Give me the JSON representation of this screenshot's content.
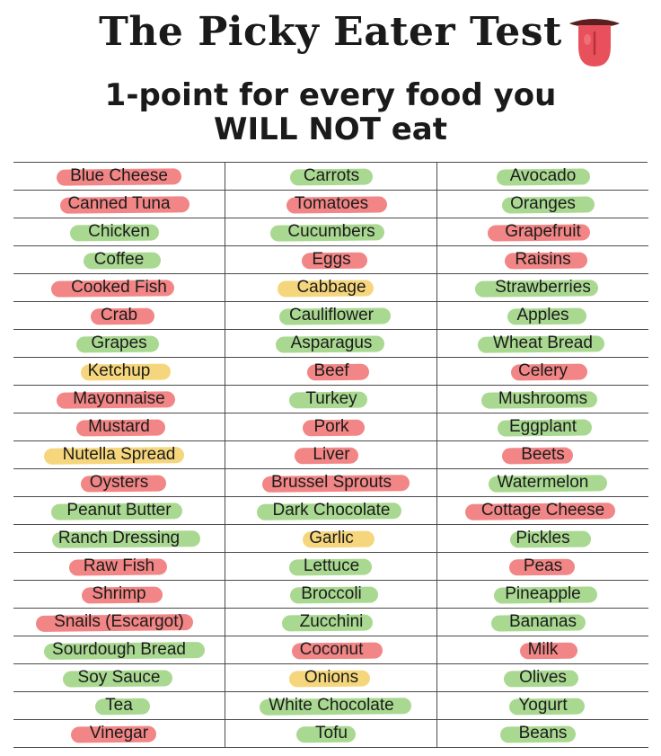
{
  "header": {
    "title": "The Picky Eater Test",
    "subtitle_line1": "1-point for every food you",
    "subtitle_line2": "WILL NOT eat"
  },
  "highlight_colors": {
    "red": "#f28585",
    "green": "#a9d891",
    "yellow": "#f6d67c"
  },
  "columns": [
    [
      {
        "label": "Blue Cheese",
        "color": "red"
      },
      {
        "label": "Canned Tuna",
        "color": "red"
      },
      {
        "label": "Chicken",
        "color": "green"
      },
      {
        "label": "Coffee",
        "color": "green"
      },
      {
        "label": "Cooked Fish",
        "color": "red"
      },
      {
        "label": "Crab",
        "color": "red"
      },
      {
        "label": "Grapes",
        "color": "green"
      },
      {
        "label": "Ketchup",
        "color": "yellow"
      },
      {
        "label": "Mayonnaise",
        "color": "red"
      },
      {
        "label": "Mustard",
        "color": "red"
      },
      {
        "label": "Nutella Spread",
        "color": "yellow"
      },
      {
        "label": "Oysters",
        "color": "red"
      },
      {
        "label": "Peanut Butter",
        "color": "green"
      },
      {
        "label": "Ranch Dressing",
        "color": "green"
      },
      {
        "label": "Raw Fish",
        "color": "red"
      },
      {
        "label": "Shrimp",
        "color": "red"
      },
      {
        "label": "Snails (Escargot)",
        "color": "red"
      },
      {
        "label": "Sourdough Bread",
        "color": "green"
      },
      {
        "label": "Soy Sauce",
        "color": "green"
      },
      {
        "label": "Tea",
        "color": "green"
      },
      {
        "label": "Vinegar",
        "color": "red"
      }
    ],
    [
      {
        "label": "Carrots",
        "color": "green"
      },
      {
        "label": "Tomatoes",
        "color": "red"
      },
      {
        "label": "Cucumbers",
        "color": "green"
      },
      {
        "label": "Eggs",
        "color": "red"
      },
      {
        "label": "Cabbage",
        "color": "yellow"
      },
      {
        "label": "Cauliflower",
        "color": "green"
      },
      {
        "label": "Asparagus",
        "color": "green"
      },
      {
        "label": "Beef",
        "color": "red"
      },
      {
        "label": "Turkey",
        "color": "green"
      },
      {
        "label": "Pork",
        "color": "red"
      },
      {
        "label": "Liver",
        "color": "red"
      },
      {
        "label": "Brussel Sprouts",
        "color": "red"
      },
      {
        "label": "Dark Chocolate",
        "color": "green"
      },
      {
        "label": "Garlic",
        "color": "yellow"
      },
      {
        "label": "Lettuce",
        "color": "green"
      },
      {
        "label": "Broccoli",
        "color": "green"
      },
      {
        "label": "Zucchini",
        "color": "green"
      },
      {
        "label": "Coconut",
        "color": "red"
      },
      {
        "label": "Onions",
        "color": "yellow"
      },
      {
        "label": "White Chocolate",
        "color": "green"
      },
      {
        "label": "Tofu",
        "color": "green"
      }
    ],
    [
      {
        "label": "Avocado",
        "color": "green"
      },
      {
        "label": "Oranges",
        "color": "green"
      },
      {
        "label": "Grapefruit",
        "color": "red"
      },
      {
        "label": "Raisins",
        "color": "red"
      },
      {
        "label": "Strawberries",
        "color": "green"
      },
      {
        "label": "Apples",
        "color": "green"
      },
      {
        "label": "Wheat Bread",
        "color": "green"
      },
      {
        "label": "Celery",
        "color": "red"
      },
      {
        "label": "Mushrooms",
        "color": "green"
      },
      {
        "label": "Eggplant",
        "color": "green"
      },
      {
        "label": "Beets",
        "color": "red"
      },
      {
        "label": "Watermelon",
        "color": "green"
      },
      {
        "label": "Cottage Cheese",
        "color": "red"
      },
      {
        "label": "Pickles",
        "color": "green"
      },
      {
        "label": "Peas",
        "color": "red"
      },
      {
        "label": "Pineapple",
        "color": "green"
      },
      {
        "label": "Bananas",
        "color": "green"
      },
      {
        "label": "Milk",
        "color": "red"
      },
      {
        "label": "Olives",
        "color": "green"
      },
      {
        "label": "Yogurt",
        "color": "green"
      },
      {
        "label": "Beans",
        "color": "green"
      }
    ]
  ]
}
